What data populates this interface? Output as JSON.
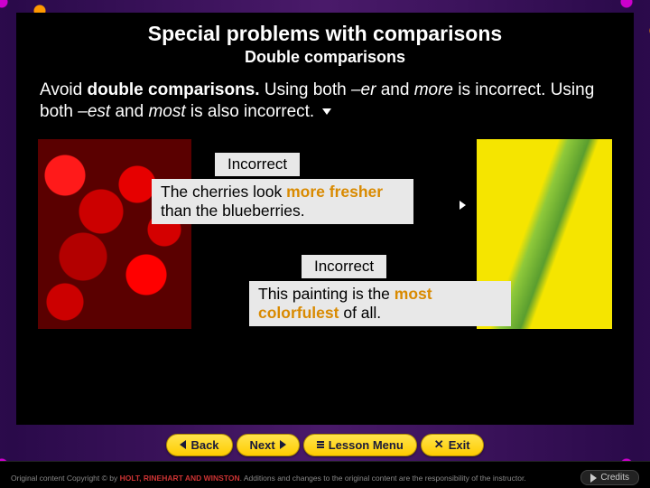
{
  "title": "Special problems with comparisons",
  "subtitle": "Double comparisons",
  "paragraph": {
    "lead": "Avoid ",
    "bold": "double comparisons.",
    "mid1": " Using both ",
    "it1": "–er",
    "mid2": " and ",
    "it2": "more",
    "mid3": " is incorrect. Using both ",
    "it3": "–est",
    "mid4": " and ",
    "it4": "most",
    "tail": " is also incorrect."
  },
  "example1": {
    "label": "Incorrect",
    "pre": "The cherries look ",
    "hl": "more fresher",
    "post": " than the blueberries."
  },
  "example2": {
    "label": "Incorrect",
    "pre": "This painting is the ",
    "hl": "most colorfulest",
    "post": " of all."
  },
  "nav": {
    "back": "Back",
    "next": "Next",
    "menu": "Lesson Menu",
    "exit": "Exit"
  },
  "footer": {
    "copy_pre": "Original content Copyright © by ",
    "publisher": "HOLT, RINEHART AND WINSTON",
    "copy_post": ". Additions and changes to the original content are the responsibility of the instructor.",
    "credits": "Credits"
  },
  "colors": {
    "highlight": "#d98a00",
    "nav_bg": "#ffcc00",
    "label_bg": "#e8e8e8"
  }
}
